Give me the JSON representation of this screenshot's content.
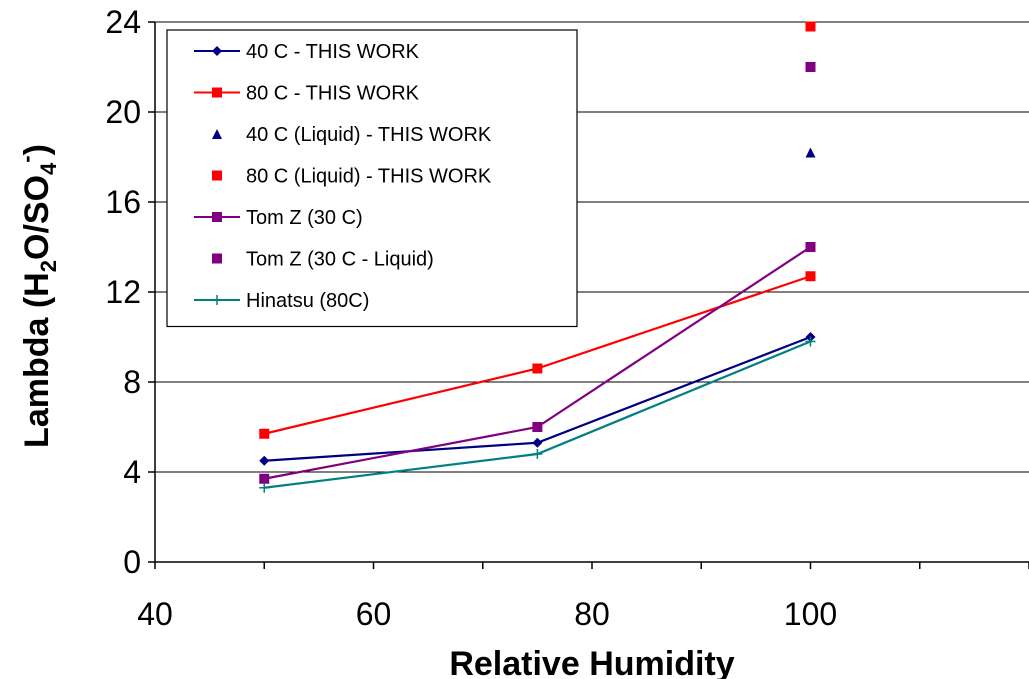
{
  "chart_data": {
    "type": "line",
    "title": "",
    "xlabel": "Relative Humidity",
    "ylabel": {
      "p1": "Lambda (H",
      "sub1": "2",
      "p2": "O/SO",
      "sub2": "4",
      "sup": "-"
    },
    "xlim": [
      40,
      120
    ],
    "ylim": [
      0,
      24
    ],
    "x_ticks": [
      "40",
      "60",
      "80",
      "100"
    ],
    "y_ticks": [
      "0",
      "4",
      "8",
      "12",
      "16",
      "20",
      "24"
    ],
    "grid": "horizontal major gridlines",
    "legend_position": "top-left inside plot",
    "series": [
      {
        "name": "40 C - THIS WORK",
        "color": "#000080",
        "marker": "diamond",
        "line": true,
        "x": [
          50,
          75,
          100
        ],
        "y": [
          4.5,
          5.3,
          10.0
        ]
      },
      {
        "name": "80 C - THIS WORK",
        "color": "#ff0000",
        "marker": "square",
        "line": true,
        "x": [
          50,
          75,
          100
        ],
        "y": [
          5.7,
          8.6,
          12.7
        ]
      },
      {
        "name": "40 C (Liquid) - THIS WORK",
        "color": "#000080",
        "marker": "triangle",
        "line": false,
        "x": [
          100
        ],
        "y": [
          18.2
        ]
      },
      {
        "name": "80 C (Liquid) - THIS WORK",
        "color": "#ff0000",
        "marker": "square",
        "line": false,
        "x": [
          100
        ],
        "y": [
          23.8
        ]
      },
      {
        "name": "Tom Z (30 C)",
        "color": "#800080",
        "marker": "square",
        "line": true,
        "x": [
          50,
          75,
          100
        ],
        "y": [
          3.7,
          6.0,
          14.0
        ]
      },
      {
        "name": "Tom Z (30 C - Liquid)",
        "color": "#800080",
        "marker": "square",
        "line": false,
        "x": [
          100
        ],
        "y": [
          22.0
        ]
      },
      {
        "name": "Hinatsu (80C)",
        "color": "#008080",
        "marker": "plus",
        "line": true,
        "x": [
          50,
          75,
          100
        ],
        "y": [
          3.3,
          4.8,
          9.8
        ]
      }
    ]
  }
}
